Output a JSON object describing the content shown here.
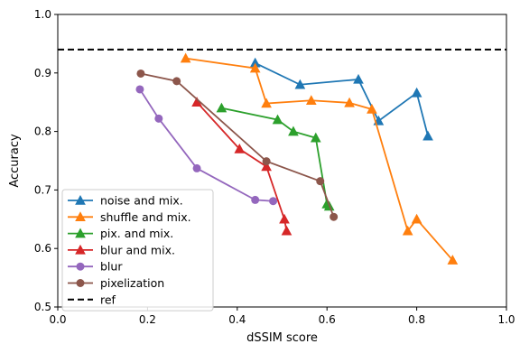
{
  "chart_data": {
    "type": "line",
    "xlabel": "dSSIM score",
    "ylabel": "Accuracy",
    "xlim": [
      0.0,
      1.0
    ],
    "ylim": [
      0.5,
      1.0
    ],
    "xticks": [
      "0.0",
      "0.2",
      "0.4",
      "0.6",
      "0.8",
      "1.0"
    ],
    "yticks": [
      "0.5",
      "0.6",
      "0.7",
      "0.8",
      "0.9",
      "1.0"
    ],
    "grid": false,
    "legend_position": "lower-left",
    "series": [
      {
        "name": "noise and mix.",
        "color": "#1f77b4",
        "marker": "triangle",
        "x": [
          0.44,
          0.54,
          0.67,
          0.715,
          0.8,
          0.825
        ],
        "y": [
          0.917,
          0.88,
          0.889,
          0.818,
          0.866,
          0.792
        ]
      },
      {
        "name": "shuffle and mix.",
        "color": "#ff7f0e",
        "marker": "triangle",
        "x": [
          0.285,
          0.44,
          0.465,
          0.565,
          0.65,
          0.7,
          0.78,
          0.8,
          0.88
        ],
        "y": [
          0.925,
          0.908,
          0.848,
          0.853,
          0.849,
          0.838,
          0.63,
          0.65,
          0.58
        ]
      },
      {
        "name": "pix. and mix.",
        "color": "#2ca02c",
        "marker": "triangle",
        "x": [
          0.365,
          0.49,
          0.525,
          0.575,
          0.6,
          0.605
        ],
        "y": [
          0.84,
          0.82,
          0.8,
          0.789,
          0.676,
          0.672
        ]
      },
      {
        "name": "blur and mix.",
        "color": "#d62728",
        "marker": "triangle",
        "x": [
          0.31,
          0.405,
          0.465,
          0.505,
          0.51
        ],
        "y": [
          0.85,
          0.77,
          0.74,
          0.65,
          0.63
        ]
      },
      {
        "name": "blur",
        "color": "#9467bd",
        "marker": "circle",
        "x": [
          0.183,
          0.225,
          0.31,
          0.44,
          0.48
        ],
        "y": [
          0.872,
          0.822,
          0.737,
          0.683,
          0.681
        ]
      },
      {
        "name": "pixelization",
        "color": "#8c564b",
        "marker": "circle",
        "x": [
          0.185,
          0.265,
          0.465,
          0.585,
          0.615
        ],
        "y": [
          0.899,
          0.886,
          0.749,
          0.715,
          0.654
        ]
      }
    ],
    "reference": {
      "name": "ref",
      "color": "#000000",
      "style": "dashed",
      "y": 0.94
    }
  }
}
